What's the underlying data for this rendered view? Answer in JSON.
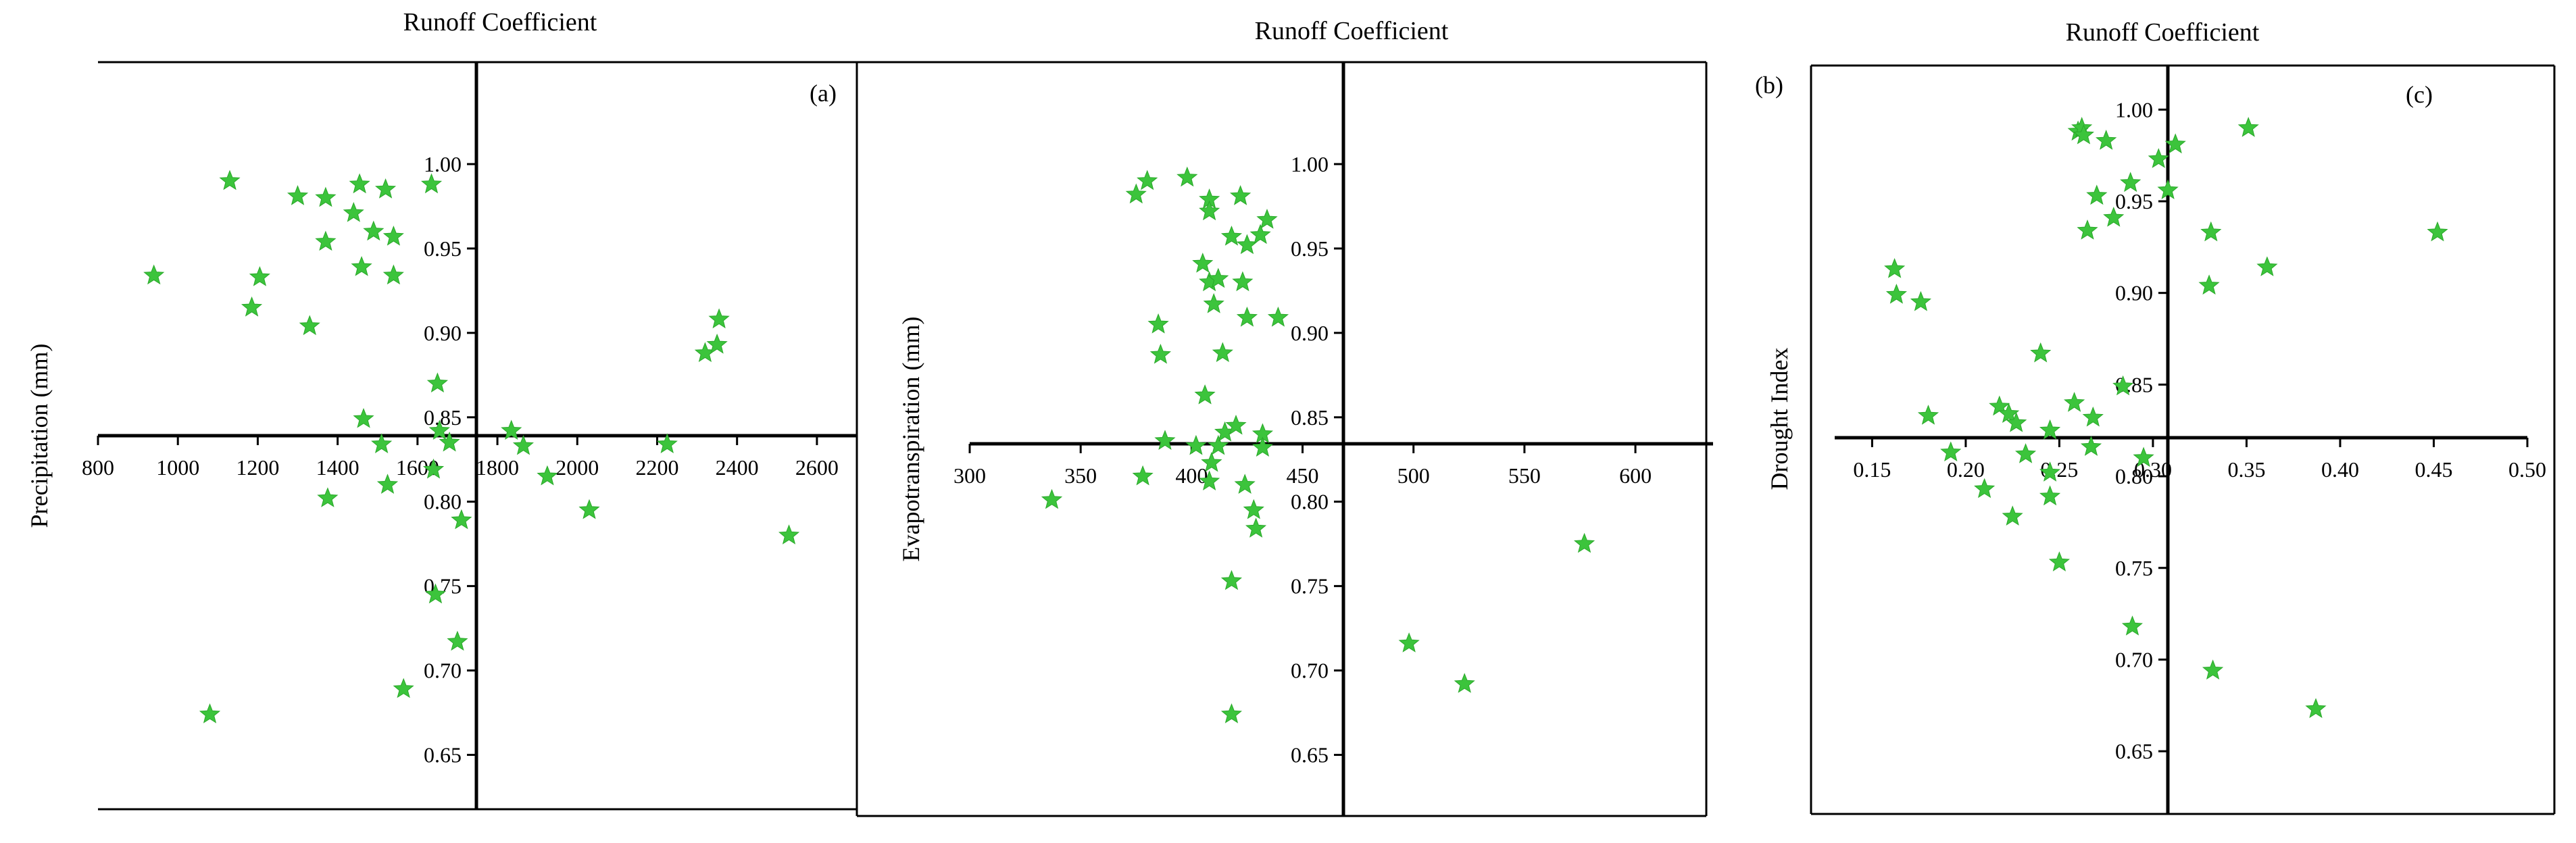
{
  "chart_data": [
    {
      "type": "scatter",
      "panel_label": "(a)",
      "title": "Runoff Coefficient",
      "xlabel": "",
      "ylabel": "Precipitation (mm)",
      "xlim": [
        800,
        2700
      ],
      "ylim": [
        0.625,
        1.05
      ],
      "x_ticks": [
        "800",
        "1000",
        "1200",
        "1400",
        "1600",
        "1800",
        "2000",
        "2200",
        "2400",
        "2600"
      ],
      "y_ticks": [
        "0.65",
        "0.70",
        "0.75",
        "0.80",
        "0.85",
        "0.90",
        "0.95",
        "1.00"
      ],
      "marker": "star",
      "marker_color": "#3cc43c",
      "points": [
        [
          940,
          0.934
        ],
        [
          1080,
          0.674
        ],
        [
          1130,
          0.99
        ],
        [
          1185,
          0.915
        ],
        [
          1205,
          0.933
        ],
        [
          1300,
          0.981
        ],
        [
          1330,
          0.904
        ],
        [
          1370,
          0.98
        ],
        [
          1370,
          0.954
        ],
        [
          1375,
          0.802
        ],
        [
          1440,
          0.971
        ],
        [
          1455,
          0.988
        ],
        [
          1460,
          0.939
        ],
        [
          1465,
          0.849
        ],
        [
          1490,
          0.96
        ],
        [
          1510,
          0.834
        ],
        [
          1520,
          0.985
        ],
        [
          1525,
          0.81
        ],
        [
          1540,
          0.957
        ],
        [
          1540,
          0.934
        ],
        [
          1565,
          0.689
        ],
        [
          1635,
          0.988
        ],
        [
          1640,
          0.819
        ],
        [
          1645,
          0.745
        ],
        [
          1650,
          0.87
        ],
        [
          1655,
          0.842
        ],
        [
          1680,
          0.835
        ],
        [
          1700,
          0.717
        ],
        [
          1710,
          0.789
        ],
        [
          1835,
          0.842
        ],
        [
          1865,
          0.833
        ],
        [
          1925,
          0.815
        ],
        [
          2030,
          0.795
        ],
        [
          2225,
          0.834
        ],
        [
          2320,
          0.888
        ],
        [
          2350,
          0.893
        ],
        [
          2355,
          0.908
        ],
        [
          2530,
          0.78
        ]
      ]
    },
    {
      "type": "scatter",
      "panel_label": "(b)",
      "title": "Runoff Coefficient",
      "xlabel": "",
      "ylabel": "Evapotranspiration (mm)",
      "xlim": [
        300,
        635
      ],
      "ylim": [
        0.625,
        1.05
      ],
      "x_ticks": [
        "300",
        "350",
        "400",
        "450",
        "500",
        "550",
        "600"
      ],
      "y_ticks": [
        "0.65",
        "0.70",
        "0.75",
        "0.80",
        "0.85",
        "0.90",
        "0.95",
        "1.00"
      ],
      "marker": "star",
      "marker_color": "#3cc43c",
      "points": [
        [
          337,
          0.801
        ],
        [
          375,
          0.982
        ],
        [
          378,
          0.815
        ],
        [
          380,
          0.99
        ],
        [
          385,
          0.905
        ],
        [
          386,
          0.887
        ],
        [
          388,
          0.836
        ],
        [
          398,
          0.992
        ],
        [
          402,
          0.833
        ],
        [
          405,
          0.941
        ],
        [
          406,
          0.863
        ],
        [
          408,
          0.812
        ],
        [
          408,
          0.979
        ],
        [
          408,
          0.93
        ],
        [
          408,
          0.972
        ],
        [
          409,
          0.823
        ],
        [
          410,
          0.917
        ],
        [
          412,
          0.833
        ],
        [
          412,
          0.932
        ],
        [
          414,
          0.888
        ],
        [
          415,
          0.841
        ],
        [
          418,
          0.957
        ],
        [
          418,
          0.753
        ],
        [
          418,
          0.674
        ],
        [
          420,
          0.845
        ],
        [
          422,
          0.981
        ],
        [
          423,
          0.93
        ],
        [
          424,
          0.81
        ],
        [
          425,
          0.952
        ],
        [
          425,
          0.909
        ],
        [
          428,
          0.795
        ],
        [
          429,
          0.784
        ],
        [
          431,
          0.958
        ],
        [
          432,
          0.84
        ],
        [
          432,
          0.832
        ],
        [
          434,
          0.967
        ],
        [
          439,
          0.909
        ],
        [
          498,
          0.716
        ],
        [
          523,
          0.692
        ],
        [
          577,
          0.775
        ]
      ]
    },
    {
      "type": "scatter",
      "panel_label": "(c)",
      "title": "Runoff Coefficient",
      "xlabel": "",
      "ylabel": "Drought Index",
      "xlim": [
        0.13,
        0.5
      ],
      "ylim": [
        0.625,
        1.02
      ],
      "x_ticks": [
        "0.15",
        "0.20",
        "0.25",
        "0.30",
        "0.35",
        "0.40",
        "0.45",
        "0.50"
      ],
      "y_ticks": [
        "0.65",
        "0.70",
        "0.75",
        "0.80",
        "0.85",
        "0.90",
        "0.95",
        "1.00"
      ],
      "marker": "star",
      "marker_color": "#3cc43c",
      "points": [
        [
          0.162,
          0.913
        ],
        [
          0.163,
          0.899
        ],
        [
          0.176,
          0.895
        ],
        [
          0.18,
          0.833
        ],
        [
          0.192,
          0.813
        ],
        [
          0.21,
          0.793
        ],
        [
          0.218,
          0.838
        ],
        [
          0.223,
          0.834
        ],
        [
          0.225,
          0.778
        ],
        [
          0.227,
          0.829
        ],
        [
          0.232,
          0.812
        ],
        [
          0.24,
          0.867
        ],
        [
          0.245,
          0.825
        ],
        [
          0.245,
          0.802
        ],
        [
          0.245,
          0.789
        ],
        [
          0.25,
          0.753
        ],
        [
          0.258,
          0.84
        ],
        [
          0.26,
          0.988
        ],
        [
          0.262,
          0.99
        ],
        [
          0.263,
          0.986
        ],
        [
          0.265,
          0.934
        ],
        [
          0.267,
          0.816
        ],
        [
          0.268,
          0.832
        ],
        [
          0.27,
          0.953
        ],
        [
          0.275,
          0.983
        ],
        [
          0.279,
          0.941
        ],
        [
          0.284,
          0.849
        ],
        [
          0.288,
          0.96
        ],
        [
          0.289,
          0.718
        ],
        [
          0.295,
          0.81
        ],
        [
          0.303,
          0.973
        ],
        [
          0.308,
          0.956
        ],
        [
          0.312,
          0.981
        ],
        [
          0.33,
          0.904
        ],
        [
          0.331,
          0.933
        ],
        [
          0.332,
          0.694
        ],
        [
          0.351,
          0.99
        ],
        [
          0.361,
          0.914
        ],
        [
          0.387,
          0.673
        ],
        [
          0.452,
          0.933
        ]
      ]
    }
  ]
}
